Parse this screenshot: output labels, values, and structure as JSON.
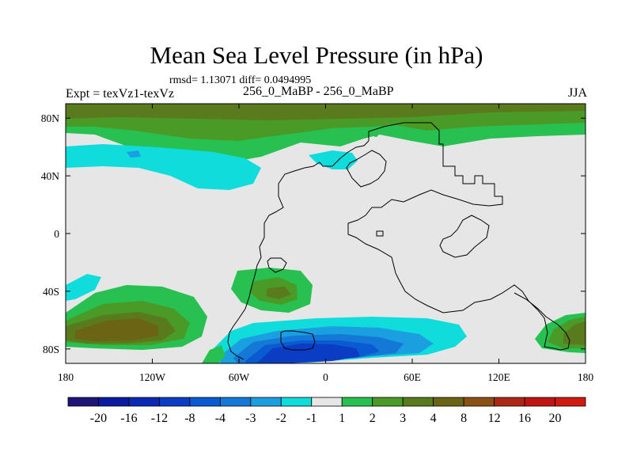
{
  "chart_data": {
    "type": "heatmap",
    "title": "Mean Sea Level Pressure (in hPa)",
    "stats_text": "rmsd= 1.13071 diff= 0.0494995",
    "left_label": "Expt = texVz1-texVz",
    "center_label": "256_0_MaBP - 256_0_MaBP",
    "right_label": "JJA",
    "x_ticks": [
      "180",
      "120W",
      "60W",
      "0",
      "60E",
      "120E",
      "180"
    ],
    "x_tick_values": [
      -180,
      -120,
      -60,
      0,
      60,
      120,
      180
    ],
    "y_ticks": [
      "80N",
      "40N",
      "0",
      "40S",
      "80S"
    ],
    "y_tick_values": [
      80,
      40,
      0,
      -40,
      -80
    ],
    "xlim": [
      -180,
      180
    ],
    "ylim": [
      -90,
      90
    ],
    "colorbar": {
      "labels": [
        "-20",
        "-16",
        "-12",
        "-8",
        "-4",
        "-3",
        "-2",
        "-1",
        "1",
        "2",
        "3",
        "4",
        "8",
        "12",
        "16",
        "20"
      ],
      "colors": [
        "#1e1478",
        "#0a1aa0",
        "#0a2ab4",
        "#0a3cc4",
        "#0a5ad2",
        "#1478d6",
        "#1aa0e0",
        "#10dcdc",
        "#e6e6e6",
        "#28c050",
        "#4a9a28",
        "#5a7a1e",
        "#6a6414",
        "#8a5014",
        "#aa2814",
        "#c01414",
        "#d01a10"
      ]
    },
    "regions": [
      {
        "name": "arctic-band",
        "level": "3 to 4",
        "lon": [
          -180,
          180
        ],
        "lat": [
          60,
          90
        ]
      },
      {
        "name": "north-pacific-low",
        "level": "-2 to -1",
        "lon": [
          -180,
          -70
        ],
        "lat": [
          30,
          55
        ]
      },
      {
        "name": "north-atlantic-low",
        "level": "-2 to -1",
        "lon": [
          -10,
          20
        ],
        "lat": [
          40,
          55
        ]
      },
      {
        "name": "south-atlantic-high",
        "level": "2 to 4",
        "lon": [
          -65,
          -15
        ],
        "lat": [
          -55,
          -25
        ]
      },
      {
        "name": "south-pacific-high",
        "level": "4 to 8",
        "lon": [
          -180,
          -85
        ],
        "lat": [
          -85,
          -45
        ]
      },
      {
        "name": "southern-ocean-low",
        "level": "-12 to -1",
        "lon": [
          -75,
          90
        ],
        "lat": [
          -90,
          -60
        ]
      },
      {
        "name": "australian-sector-high",
        "level": "3 to 4",
        "lon": [
          150,
          180
        ],
        "lat": [
          -85,
          -55
        ]
      }
    ]
  }
}
